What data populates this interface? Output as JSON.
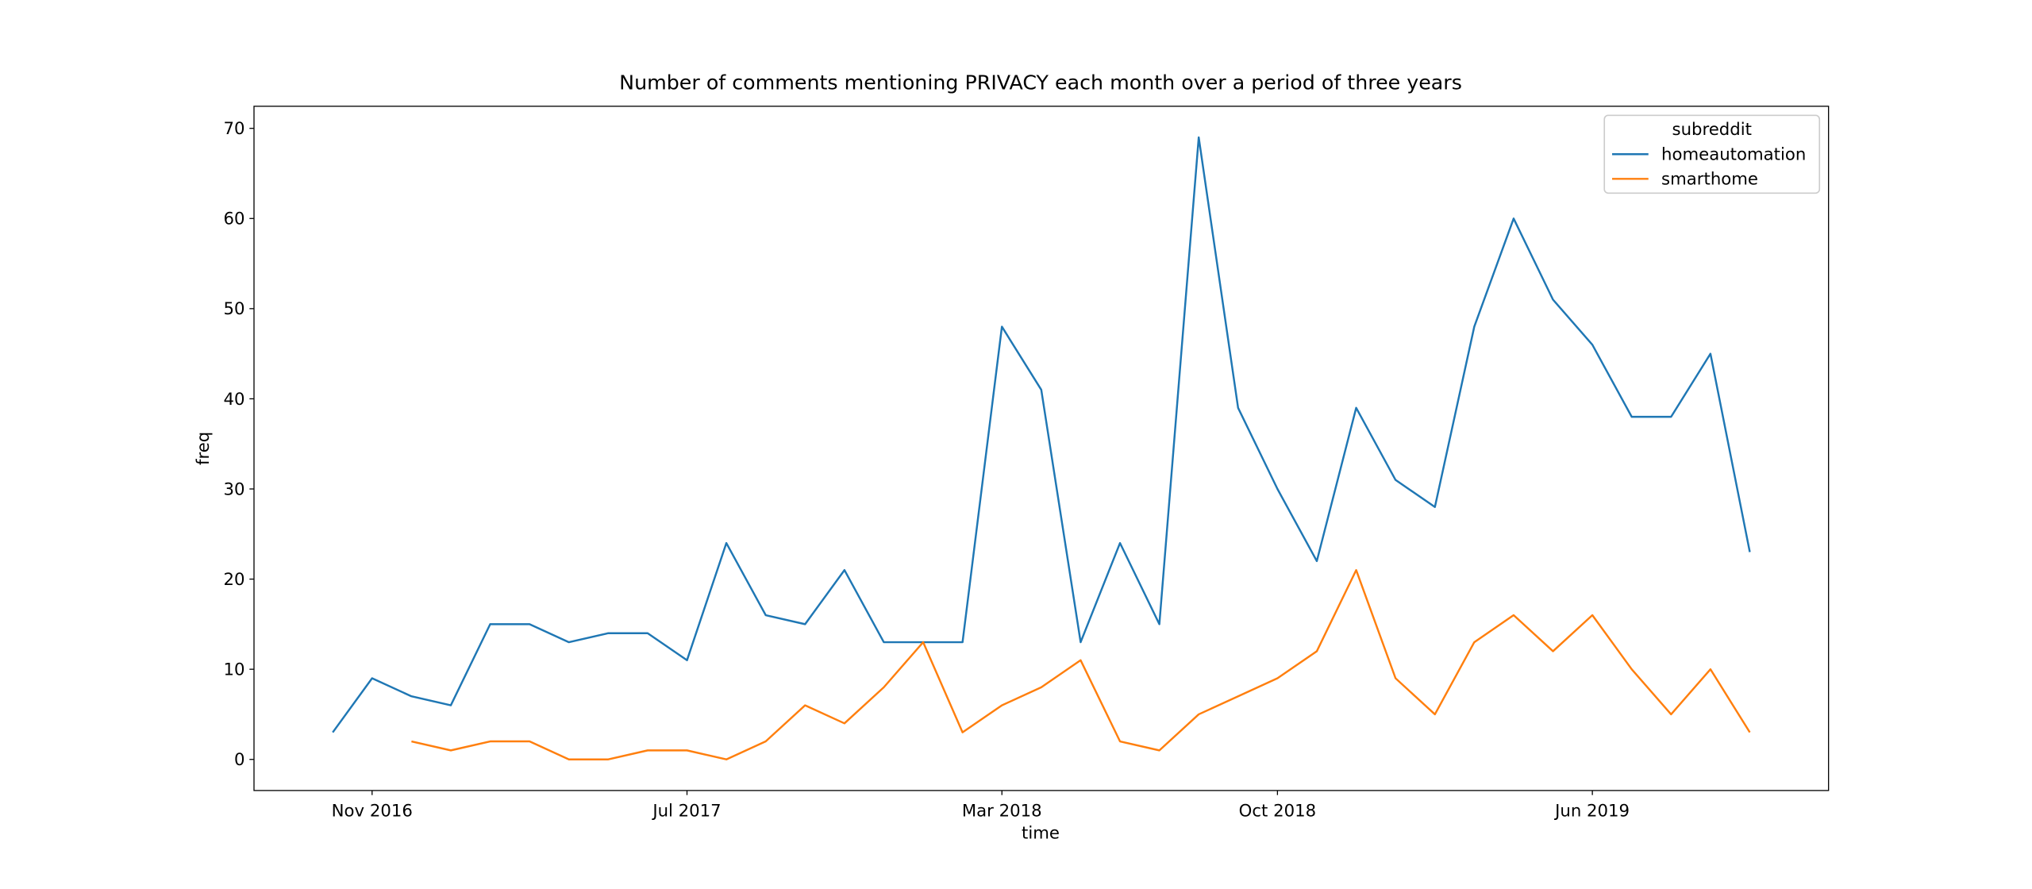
{
  "chart_data": {
    "type": "line",
    "title": "Number of comments mentioning PRIVACY each month over a period of three years",
    "x_label": "time",
    "y_label": "freq",
    "legend_title": "subreddit",
    "legend_position": "upper right",
    "x": [
      "2016-10",
      "2016-11",
      "2016-12",
      "2017-01",
      "2017-02",
      "2017-03",
      "2017-04",
      "2017-05",
      "2017-06",
      "2017-07",
      "2017-08",
      "2017-09",
      "2017-10",
      "2017-11",
      "2017-12",
      "2018-01",
      "2018-02",
      "2018-03",
      "2018-04",
      "2018-05",
      "2018-06",
      "2018-07",
      "2018-08",
      "2018-09",
      "2018-10",
      "2018-11",
      "2018-12",
      "2019-01",
      "2019-02",
      "2019-03",
      "2019-04",
      "2019-05",
      "2019-06",
      "2019-07",
      "2019-08",
      "2019-09",
      "2019-10"
    ],
    "series": [
      {
        "name": "homeautomation",
        "color": "#1f77b4",
        "values": [
          3,
          9,
          7,
          6,
          15,
          15,
          13,
          14,
          14,
          11,
          24,
          16,
          15,
          21,
          13,
          13,
          13,
          48,
          41,
          13,
          24,
          15,
          69,
          39,
          30,
          22,
          39,
          31,
          28,
          48,
          60,
          51,
          46,
          38,
          38,
          45,
          23
        ]
      },
      {
        "name": "smarthome",
        "color": "#ff7f0e",
        "values": [
          null,
          null,
          2,
          1,
          2,
          2,
          0,
          0,
          1,
          1,
          0,
          2,
          6,
          4,
          8,
          13,
          3,
          6,
          8,
          11,
          2,
          1,
          5,
          7,
          9,
          12,
          21,
          9,
          5,
          13,
          16,
          12,
          16,
          10,
          5,
          10,
          3
        ]
      }
    ],
    "xlim": [
      "2016-08",
      "2019-12"
    ],
    "xticks": [
      {
        "value": "2016-11",
        "label": "Nov 2016"
      },
      {
        "value": "2017-07",
        "label": "Jul 2017"
      },
      {
        "value": "2018-03",
        "label": "Mar 2018"
      },
      {
        "value": "2018-10",
        "label": "Oct 2018"
      },
      {
        "value": "2019-06",
        "label": "Jun 2019"
      }
    ],
    "ylim": [
      -3.45,
      72.45
    ],
    "yticks": [
      0,
      10,
      20,
      30,
      40,
      50,
      60,
      70
    ],
    "grid": false
  }
}
